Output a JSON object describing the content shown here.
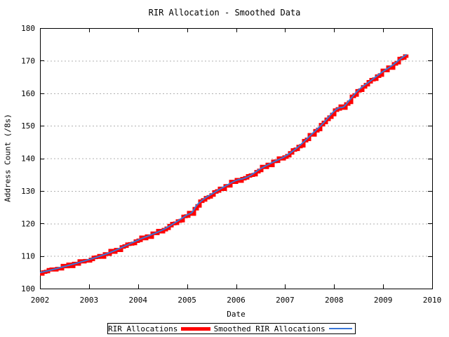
{
  "chart_data": {
    "type": "line",
    "title": "RIR Allocation - Smoothed Data",
    "xlabel": "Date",
    "ylabel": "Address Count (/8s)",
    "xlim": [
      2002,
      2010
    ],
    "ylim": [
      100,
      180
    ],
    "xticks": [
      2002,
      2003,
      2004,
      2005,
      2006,
      2007,
      2008,
      2009,
      2010
    ],
    "yticks": [
      100,
      110,
      120,
      130,
      140,
      150,
      160,
      170,
      180
    ],
    "grid": "horizontal-dashed-only",
    "legend_position": "below-chart-boxed",
    "x": [
      2002.0,
      2002.25,
      2002.5,
      2002.75,
      2003.0,
      2003.25,
      2003.5,
      2003.75,
      2004.0,
      2004.25,
      2004.5,
      2004.75,
      2005.0,
      2005.1,
      2005.2,
      2005.35,
      2005.5,
      2005.75,
      2006.0,
      2006.15,
      2006.3,
      2006.5,
      2006.75,
      2007.0,
      2007.25,
      2007.5,
      2007.75,
      2008.0,
      2008.1,
      2008.2,
      2008.35,
      2008.5,
      2008.75,
      2009.0,
      2009.2,
      2009.35,
      2009.48
    ],
    "series": [
      {
        "name": "RIR Allocations",
        "color": "#ff0000",
        "line_width": 5,
        "style": "thick stepped raw data hugging the smoothed curve",
        "jitter": 0.4,
        "values": [
          104.9,
          105.8,
          106.8,
          107.8,
          108.9,
          110.1,
          111.5,
          113.2,
          114.9,
          116.4,
          118.0,
          120.2,
          122.6,
          123.4,
          125.6,
          127.6,
          129.0,
          131.2,
          133.2,
          133.8,
          134.8,
          136.8,
          138.8,
          140.6,
          143.3,
          146.8,
          150.4,
          154.5,
          155.5,
          155.9,
          158.5,
          161.0,
          163.9,
          166.7,
          168.7,
          170.5,
          171.9
        ]
      },
      {
        "name": "Smoothed RIR Allocations",
        "color": "#3a76d6",
        "line_width": 2,
        "style": "thin smooth line drawn on top of raw data",
        "jitter": 0,
        "values": [
          104.9,
          105.8,
          106.8,
          107.8,
          108.9,
          110.1,
          111.5,
          113.2,
          114.9,
          116.4,
          118.0,
          120.2,
          122.6,
          123.4,
          125.6,
          127.6,
          129.0,
          131.2,
          133.2,
          133.8,
          134.8,
          136.8,
          138.8,
          140.6,
          143.3,
          146.8,
          150.4,
          154.5,
          155.5,
          155.9,
          158.5,
          161.0,
          163.9,
          166.7,
          168.7,
          170.5,
          171.9
        ]
      }
    ],
    "colors": {
      "background": "#ffffff",
      "border": "#000000",
      "grid": "#b0b0b0",
      "text": "#000000"
    }
  }
}
